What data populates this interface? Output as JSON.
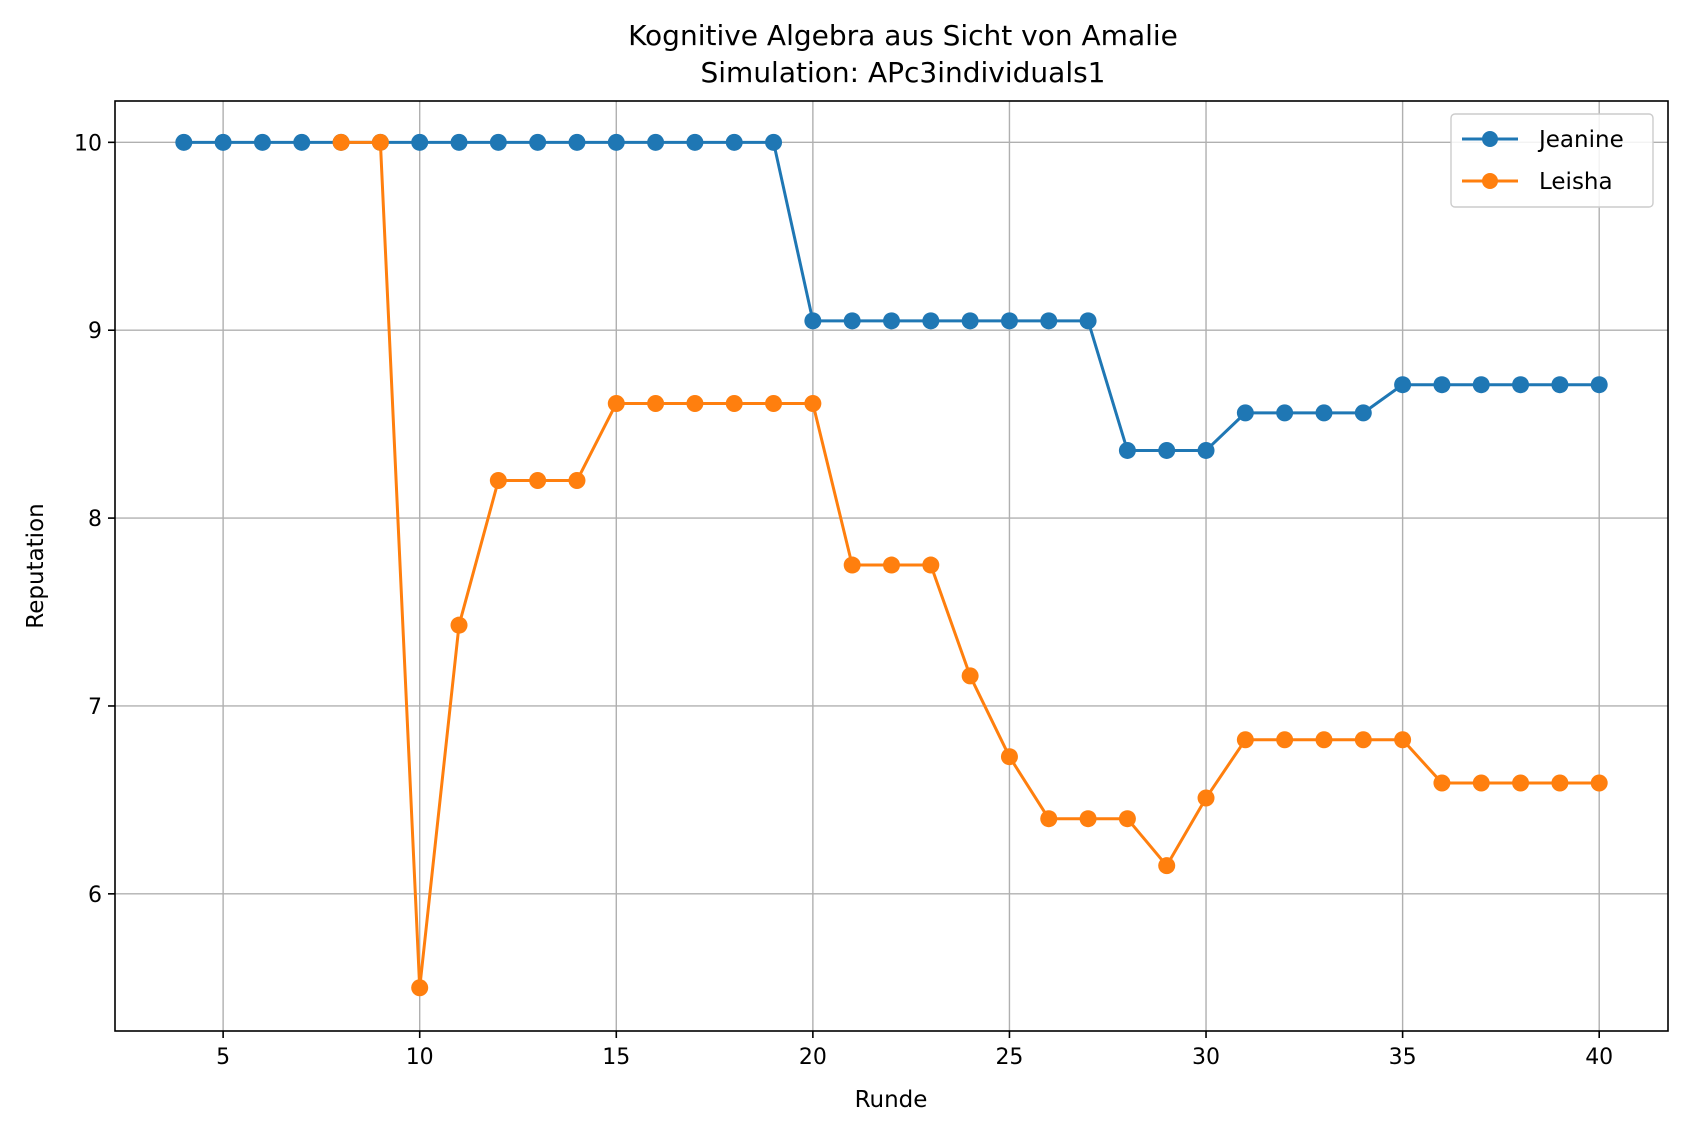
{
  "chart_data": {
    "type": "line",
    "title": "Kognitive Algebra aus Sicht von Amalie",
    "subtitle": "Simulation: APc3individuals1",
    "xlabel": "Runde",
    "ylabel": "Reputation",
    "xlim": [
      2.25,
      41.75
    ],
    "ylim": [
      5.27,
      10.22
    ],
    "xticks": [
      5,
      10,
      15,
      20,
      25,
      30,
      35,
      40
    ],
    "yticks": [
      6,
      7,
      8,
      9,
      10
    ],
    "grid": true,
    "legend_position": "top-right",
    "series": [
      {
        "name": "Jeanine",
        "color": "#1f77b4",
        "x": [
          4,
          5,
          6,
          7,
          8,
          9,
          10,
          11,
          12,
          13,
          14,
          15,
          16,
          17,
          18,
          19,
          20,
          21,
          22,
          23,
          24,
          25,
          26,
          27,
          28,
          29,
          30,
          31,
          32,
          33,
          34,
          35,
          36,
          37,
          38,
          39,
          40
        ],
        "y": [
          10,
          10,
          10,
          10,
          10,
          10,
          10,
          10,
          10,
          10,
          10,
          10,
          10,
          10,
          10,
          10,
          9.05,
          9.05,
          9.05,
          9.05,
          9.05,
          9.05,
          9.05,
          9.05,
          8.36,
          8.36,
          8.36,
          8.56,
          8.56,
          8.56,
          8.56,
          8.71,
          8.71,
          8.71,
          8.71,
          8.71,
          8.71
        ]
      },
      {
        "name": "Leisha",
        "color": "#ff7f0e",
        "x": [
          8,
          9,
          10,
          11,
          12,
          13,
          14,
          15,
          16,
          17,
          18,
          19,
          20,
          21,
          22,
          23,
          24,
          25,
          26,
          27,
          28,
          29,
          30,
          31,
          32,
          33,
          34,
          35,
          36,
          37,
          38,
          39,
          40
        ],
        "y": [
          10,
          10,
          5.5,
          7.43,
          8.2,
          8.2,
          8.2,
          8.61,
          8.61,
          8.61,
          8.61,
          8.61,
          8.61,
          7.75,
          7.75,
          7.75,
          7.16,
          6.73,
          6.4,
          6.4,
          6.4,
          6.15,
          6.51,
          6.82,
          6.82,
          6.82,
          6.82,
          6.82,
          6.59,
          6.59,
          6.59,
          6.59,
          6.59
        ]
      }
    ]
  }
}
